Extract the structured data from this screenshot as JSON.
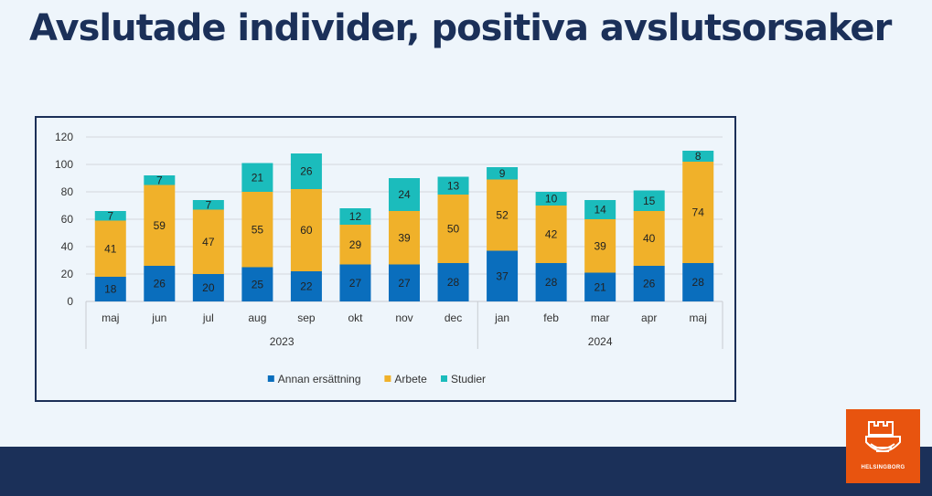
{
  "title": "Avslutade individer, positiva avslutsorsaker",
  "logo": {
    "text": "HELSINGBORG",
    "icon": "castle-crest-icon"
  },
  "colors": {
    "background": "#eef5fb",
    "title": "#1b3059",
    "footer": "#1b3059",
    "logo": "#e8540f",
    "annan": "#0a6ebd",
    "arbete": "#f0b12a",
    "studier": "#1bbcbc"
  },
  "chart_data": {
    "type": "bar",
    "stacked": true,
    "title": "",
    "xlabel": "",
    "ylabel": "",
    "ylim": [
      0,
      120
    ],
    "yticks": [
      0,
      20,
      40,
      60,
      80,
      100,
      120
    ],
    "grid": true,
    "legend_position": "bottom",
    "categories": [
      "maj",
      "jun",
      "jul",
      "aug",
      "sep",
      "okt",
      "nov",
      "dec",
      "jan",
      "feb",
      "mar",
      "apr",
      "maj"
    ],
    "groups": [
      {
        "label": "2023",
        "count": 8
      },
      {
        "label": "2024",
        "count": 5
      }
    ],
    "series": [
      {
        "name": "Annan ersättning",
        "color": "#0a6ebd",
        "values": [
          18,
          26,
          20,
          25,
          22,
          27,
          27,
          28,
          37,
          28,
          21,
          26,
          28
        ]
      },
      {
        "name": "Arbete",
        "color": "#f0b12a",
        "values": [
          41,
          59,
          47,
          55,
          60,
          29,
          39,
          50,
          52,
          42,
          39,
          40,
          74
        ]
      },
      {
        "name": "Studier",
        "color": "#1bbcbc",
        "values": [
          7,
          7,
          7,
          21,
          26,
          12,
          24,
          13,
          9,
          10,
          14,
          15,
          8
        ]
      }
    ]
  }
}
